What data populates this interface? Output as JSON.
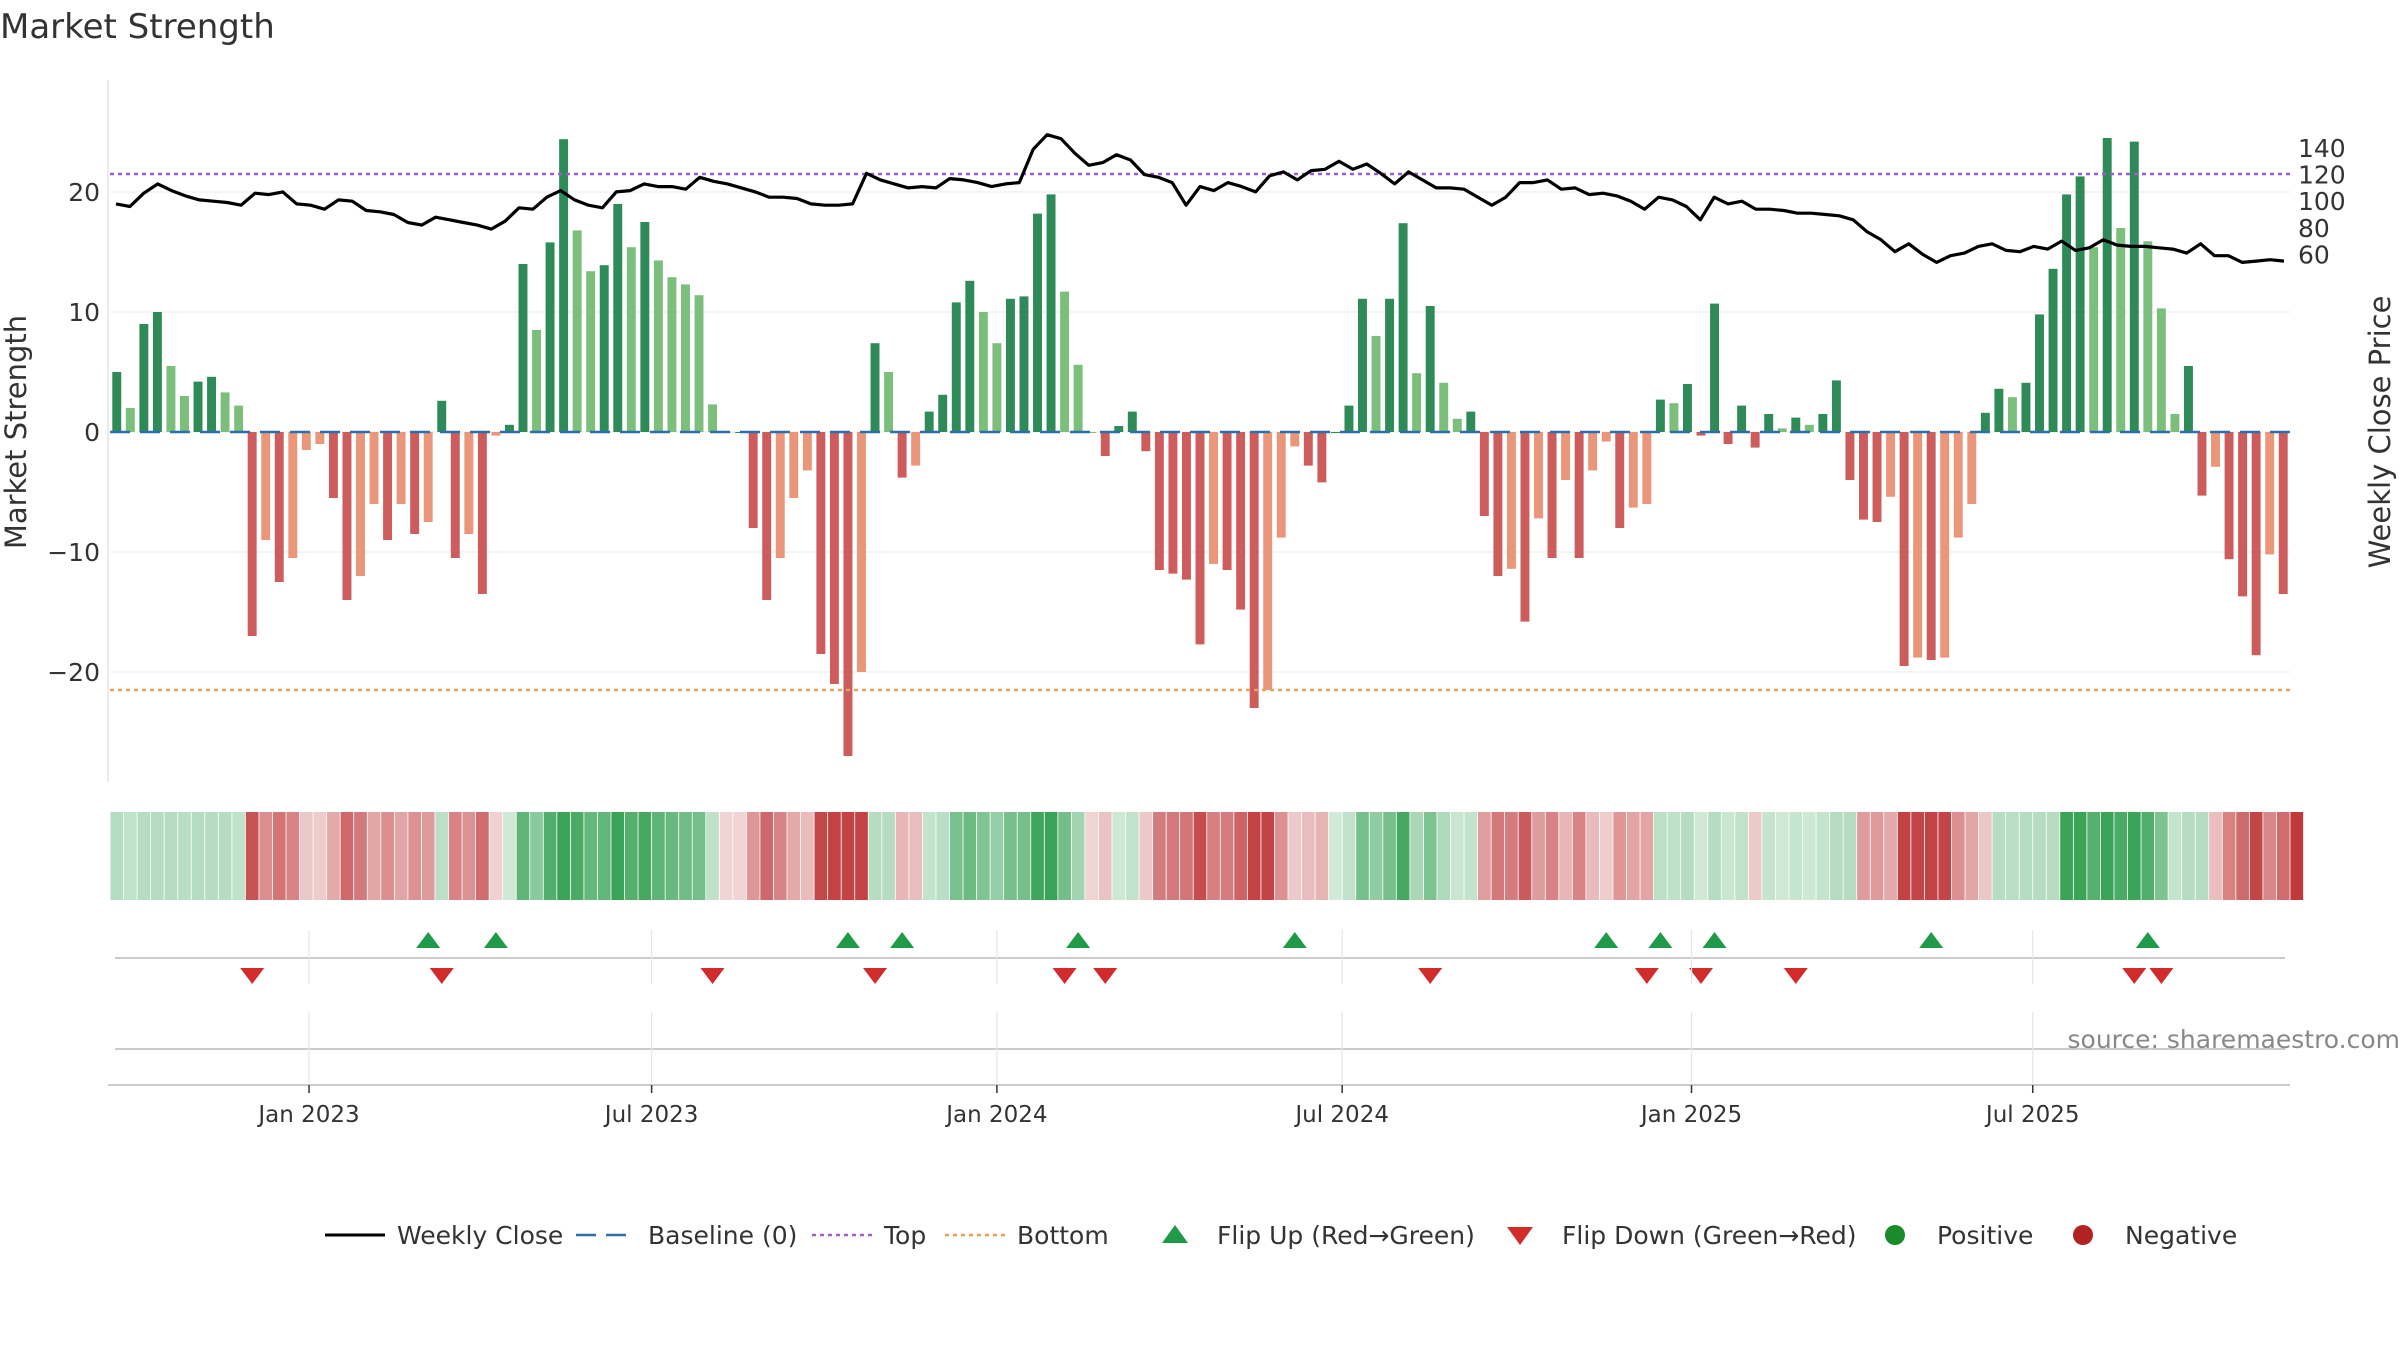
{
  "chart_data": {
    "type": "bar",
    "title": "Market Strength",
    "ylabel": "Market Strength",
    "y2label": "Weekly Close Price",
    "source": "source: sharemaestro.com",
    "ylim": [
      -29,
      29
    ],
    "y2lim": [
      48,
      152
    ],
    "yticks": [
      {
        "v": 20,
        "label": "20"
      },
      {
        "v": 10,
        "label": "10"
      },
      {
        "v": 0,
        "label": "0"
      },
      {
        "v": -10,
        "label": "−10"
      },
      {
        "v": -20,
        "label": "−20"
      }
    ],
    "y2ticks": [
      {
        "v": 140,
        "label": "140"
      },
      {
        "v": 120,
        "label": "120"
      },
      {
        "v": 100,
        "label": "100"
      },
      {
        "v": 80,
        "label": "80"
      },
      {
        "v": 60,
        "label": "60"
      }
    ],
    "top_line": 21.5,
    "bottom_line": -21.5,
    "x_start_index": 0,
    "x_end_index": 153,
    "xticks": [
      {
        "index": 14.7,
        "label": "Jan 2023"
      },
      {
        "index": 40.0,
        "label": "Jul 2023"
      },
      {
        "index": 65.5,
        "label": "Jan 2024"
      },
      {
        "index": 91.0,
        "label": "Jul 2024"
      },
      {
        "index": 116.8,
        "label": "Jan 2025"
      },
      {
        "index": 142.0,
        "label": "Jul 2025"
      }
    ],
    "strength": [
      5,
      2,
      9,
      10,
      5.5,
      3,
      4.2,
      4.6,
      3.3,
      2.2,
      -17,
      -9,
      -12.5,
      -10.5,
      -1.5,
      -1,
      -5.5,
      -14,
      -12,
      -6,
      -9,
      -6,
      -8.5,
      -7.5,
      2.6,
      -10.5,
      -8.5,
      -13.5,
      -0.3,
      0.6,
      14,
      8.5,
      15.8,
      24.4,
      16.8,
      13.4,
      13.9,
      19,
      15.4,
      17.5,
      14.3,
      12.9,
      12.3,
      11.4,
      2.3,
      0,
      0,
      -8,
      -14,
      -10.5,
      -5.5,
      -3.2,
      -18.5,
      -21,
      -27,
      -20,
      7.4,
      5,
      -3.8,
      -2.8,
      1.7,
      3.1,
      10.8,
      12.6,
      10,
      7.4,
      11.1,
      11.3,
      18.2,
      19.8,
      11.7,
      5.6,
      0,
      -2,
      0.5,
      1.7,
      -1.6,
      -11.5,
      -11.8,
      -12.3,
      -17.7,
      -11,
      -11.5,
      -14.8,
      -23,
      -21.5,
      -8.8,
      -1.2,
      -2.8,
      -4.2,
      0,
      2.2,
      11.1,
      8,
      11.1,
      17.4,
      4.9,
      10.5,
      4.1,
      1.1,
      1.7,
      -7,
      -12,
      -11.4,
      -15.8,
      -7.2,
      -10.5,
      -4,
      -10.5,
      -3.2,
      -0.8,
      -8,
      -6.3,
      -6,
      2.7,
      2.4,
      4,
      -0.3,
      10.7,
      -1,
      2.2,
      -1.3,
      1.5,
      0.3,
      1.2,
      0.6,
      1.5,
      4.3,
      -4,
      -7.3,
      -7.5,
      -5.4,
      -19.5,
      -18.8,
      -19,
      -18.8,
      -8.8,
      -6,
      1.6,
      3.6,
      2.9,
      4.1,
      9.8,
      13.6,
      19.8,
      21.3,
      15.4,
      24.5,
      17,
      24.2,
      15.9,
      10.3,
      1.5,
      5.5,
      -5.3,
      -2.9,
      -10.6,
      -13.7,
      -18.6,
      -10.2,
      -13.5
    ],
    "weekly_close": [
      98,
      96,
      106,
      113,
      108,
      104,
      101,
      100,
      99,
      97,
      106,
      105,
      107,
      98,
      97,
      94,
      101,
      100,
      93,
      92,
      90,
      84,
      82,
      88,
      86,
      84,
      82,
      79,
      85,
      95,
      94,
      103,
      108,
      101,
      97,
      95,
      107,
      108,
      113,
      111,
      111,
      109,
      118,
      115,
      113,
      110,
      107,
      103,
      103,
      102,
      98,
      97,
      97,
      98,
      121,
      116,
      113,
      110,
      111,
      110,
      117,
      116,
      114,
      111,
      113,
      114,
      139,
      150,
      147,
      136,
      127,
      129,
      135,
      131,
      120,
      118,
      114,
      97,
      111,
      108,
      114,
      111,
      107,
      119,
      122,
      116,
      123,
      124,
      130,
      124,
      128,
      121,
      113,
      122,
      116,
      110,
      110,
      109,
      103,
      97,
      103,
      114,
      114,
      116,
      109,
      110,
      105,
      106,
      104,
      100,
      94,
      103,
      101,
      96,
      86,
      103,
      98,
      100,
      94,
      94,
      93,
      91,
      91,
      90,
      89,
      86,
      77,
      71,
      62,
      68,
      60,
      54,
      59,
      61,
      66,
      68,
      63,
      62,
      66,
      64,
      70,
      63,
      65,
      71,
      67,
      66,
      66,
      65,
      64,
      61,
      68,
      59,
      59,
      54,
      55,
      56,
      55
    ],
    "regime_band": [
      "lg",
      "lg",
      "lg",
      "lg",
      "lg",
      "lg",
      "lg",
      "lg",
      "lg",
      "lg",
      "r",
      "r",
      "r",
      "r",
      "r",
      "r",
      "r",
      "r",
      "r",
      "r",
      "r",
      "r",
      "r",
      "r",
      "lg",
      "r",
      "r",
      "r",
      "r",
      "g",
      "g",
      "g",
      "g",
      "g",
      "g",
      "g",
      "g",
      "g",
      "g",
      "g",
      "g",
      "g",
      "g",
      "g",
      "g",
      "r",
      "r",
      "r",
      "r",
      "r",
      "r",
      "r",
      "r",
      "r",
      "r",
      "r",
      "lg",
      "lg",
      "r",
      "r",
      "lg",
      "lg",
      "g",
      "g",
      "g",
      "g",
      "g",
      "g",
      "g",
      "g",
      "g",
      "g",
      "r",
      "r",
      "lg",
      "lg",
      "r",
      "r",
      "r",
      "r",
      "r",
      "r",
      "r",
      "r",
      "r",
      "r",
      "r",
      "r",
      "r",
      "r",
      "lg",
      "lg",
      "g",
      "g",
      "g",
      "g",
      "g",
      "g",
      "g",
      "g",
      "lg",
      "r",
      "r",
      "r",
      "r",
      "r",
      "r",
      "r",
      "r",
      "r",
      "r",
      "r",
      "r",
      "r",
      "lg",
      "lg",
      "lg",
      "lg",
      "lg",
      "lg",
      "lg",
      "r",
      "lg",
      "lg",
      "lg",
      "lg",
      "lg",
      "lg",
      "lg",
      "r",
      "r",
      "r",
      "r",
      "r",
      "r",
      "r",
      "r",
      "r",
      "r",
      "lg",
      "lg",
      "lg",
      "lg",
      "lg",
      "g",
      "g",
      "g",
      "g",
      "g",
      "g",
      "g",
      "g",
      "g",
      "lg",
      "lg",
      "r",
      "r",
      "r",
      "r",
      "r",
      "r",
      "r"
    ],
    "flip_up_indices": [
      23,
      28,
      54,
      58,
      71,
      87,
      110,
      114,
      118,
      134,
      150
    ],
    "flip_down_indices": [
      10,
      24,
      44,
      56,
      70,
      73,
      97,
      113,
      117,
      124,
      149,
      151
    ],
    "legend": [
      {
        "label": "Weekly Close",
        "kind": "line",
        "color": "#000000"
      },
      {
        "label": "Baseline (0)",
        "kind": "dash",
        "color": "#2f6fa8"
      },
      {
        "label": "Top",
        "kind": "dot",
        "color": "#9a5fc9"
      },
      {
        "label": "Bottom",
        "kind": "dot",
        "color": "#e8a05a"
      },
      {
        "label": "Flip Up (Red→Green)",
        "kind": "triangle-up",
        "color": "#1e9a48"
      },
      {
        "label": "Flip Down (Green→Red)",
        "kind": "triangle-down",
        "color": "#d22b2b"
      },
      {
        "label": "Positive",
        "kind": "circle",
        "color": "#1b8a2a"
      },
      {
        "label": "Negative",
        "kind": "circle",
        "color": "#b22222"
      }
    ],
    "colors": {
      "pos_strong": "#2e8b57",
      "pos_light": "#7cbf7c",
      "neg_strong": "#cd5c5c",
      "neg_light": "#e9967a",
      "baseline": "#2f6fa8",
      "top": "#9a5fc9",
      "bottom": "#e8a05a",
      "close": "#000000",
      "band_green": "#2e9e4f",
      "band_red": "#c0393b"
    }
  }
}
